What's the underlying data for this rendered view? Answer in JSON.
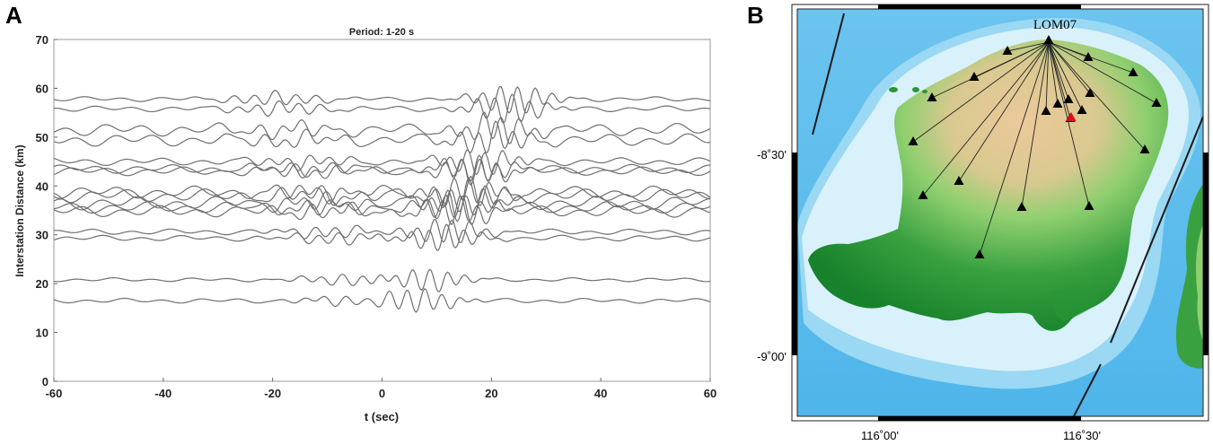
{
  "panels": {
    "a_label": "A",
    "b_label": "B"
  },
  "chart_data": [
    {
      "type": "line",
      "title": "Period: 1-20 s",
      "xlabel": "t (sec)",
      "ylabel": "Interstation Distance (km)",
      "xlim": [
        -60,
        60
      ],
      "ylim": [
        0,
        70
      ],
      "xticks": [
        "-60",
        "-40",
        "-20",
        "0",
        "20",
        "40",
        "60"
      ],
      "yticks": [
        "0",
        "10",
        "20",
        "30",
        "40",
        "50",
        "60",
        "70"
      ],
      "grid": false,
      "color": "#6f6f6f",
      "traces": [
        {
          "distance": 16.5,
          "amplitude": 4.0,
          "arrival": 7.0,
          "noise": 0.5
        },
        {
          "distance": 20.8,
          "amplitude": 4.2,
          "arrival": 8.0,
          "noise": 0.4
        },
        {
          "distance": 29.3,
          "amplitude": 4.5,
          "arrival": 11.0,
          "noise": 0.6
        },
        {
          "distance": 30.6,
          "amplitude": 4.5,
          "arrival": 12.0,
          "noise": 0.6
        },
        {
          "distance": 34.8,
          "amplitude": 4.8,
          "arrival": 13.5,
          "noise": 1.2
        },
        {
          "distance": 35.6,
          "amplitude": 4.8,
          "arrival": 14.0,
          "noise": 1.2
        },
        {
          "distance": 36.5,
          "amplitude": 5.0,
          "arrival": 14.5,
          "noise": 1.4
        },
        {
          "distance": 38.0,
          "amplitude": 5.0,
          "arrival": 15.0,
          "noise": 1.4
        },
        {
          "distance": 38.7,
          "amplitude": 5.0,
          "arrival": 15.5,
          "noise": 1.3
        },
        {
          "distance": 43.0,
          "amplitude": 4.6,
          "arrival": 17.0,
          "noise": 0.9
        },
        {
          "distance": 43.5,
          "amplitude": 4.6,
          "arrival": 17.0,
          "noise": 0.9
        },
        {
          "distance": 45.0,
          "amplitude": 4.6,
          "arrival": 18.0,
          "noise": 0.8
        },
        {
          "distance": 49.4,
          "amplitude": 5.0,
          "arrival": 20.0,
          "noise": 1.3
        },
        {
          "distance": 51.5,
          "amplitude": 5.0,
          "arrival": 21.0,
          "noise": 1.3
        },
        {
          "distance": 55.8,
          "amplitude": 5.2,
          "arrival": 23.0,
          "noise": 0.6
        },
        {
          "distance": 57.8,
          "amplitude": 5.2,
          "arrival": 24.0,
          "noise": 0.5
        }
      ]
    },
    {
      "type": "map",
      "reference_station": "LOM07",
      "lat_labels": [
        "-8˚30'",
        "-9˚00'"
      ],
      "lon_labels": [
        "116˚00'",
        "116˚30'"
      ],
      "colors": {
        "sea_deep": "#3fa9e6",
        "sea_mid": "#8fd2f2",
        "sea_shallow": "#d9f1fb",
        "land_low": "#1f8a2e",
        "land_mid": "#7cc26a",
        "land_high": "#e8c79a",
        "summit_marker": "#e01010",
        "station_marker": "#000000"
      }
    }
  ]
}
